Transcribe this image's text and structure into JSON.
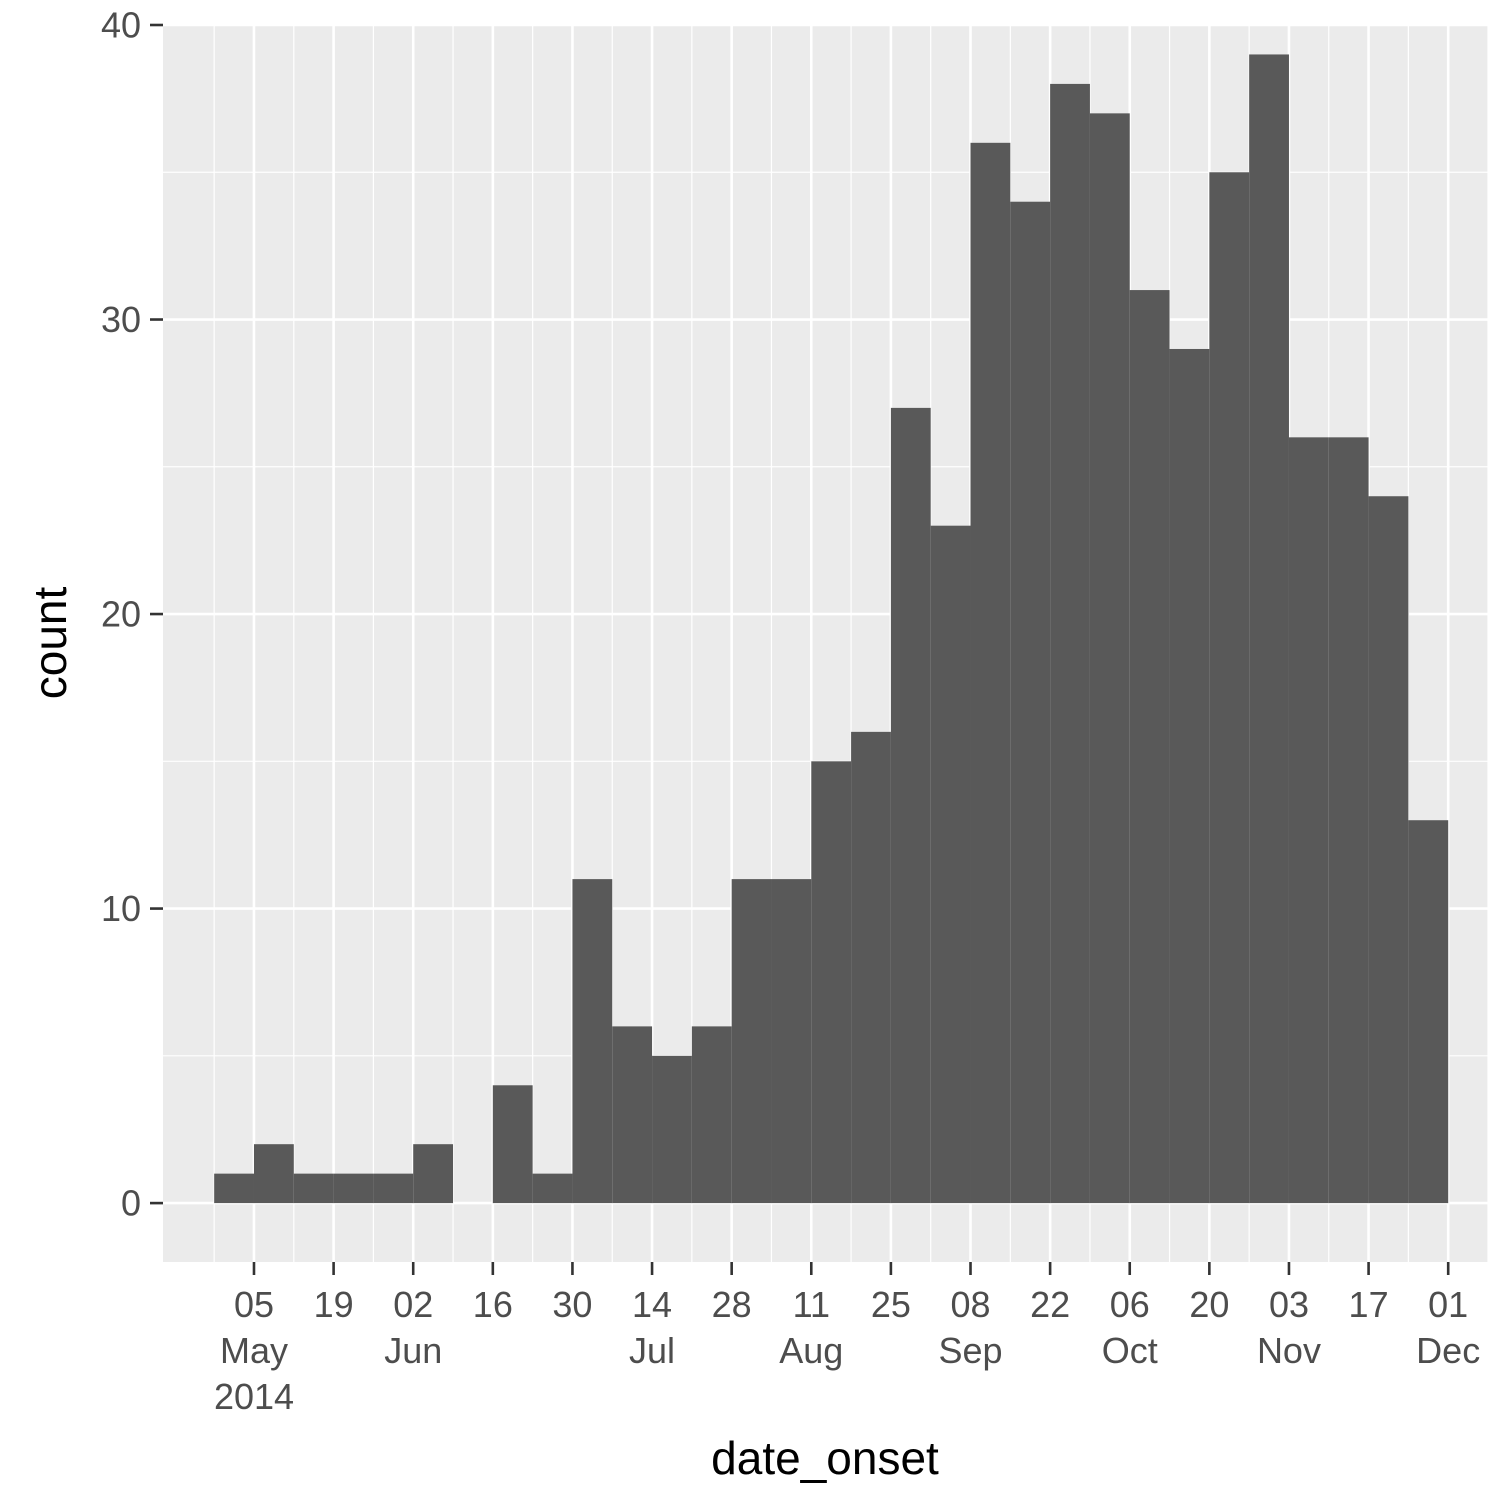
{
  "chart_data": {
    "type": "bar",
    "xlabel": "date_onset",
    "ylabel": "count",
    "ylim": [
      -2,
      40
    ],
    "xlim": [
      "2014-04-19",
      "2014-12-08"
    ],
    "grid": true,
    "bins": [
      {
        "start": "2014-04-28",
        "end": "2014-05-05",
        "count": 1
      },
      {
        "start": "2014-05-05",
        "end": "2014-05-12",
        "count": 2
      },
      {
        "start": "2014-05-12",
        "end": "2014-05-19",
        "count": 1
      },
      {
        "start": "2014-05-19",
        "end": "2014-05-26",
        "count": 1
      },
      {
        "start": "2014-05-26",
        "end": "2014-06-02",
        "count": 1
      },
      {
        "start": "2014-06-02",
        "end": "2014-06-09",
        "count": 2
      },
      {
        "start": "2014-06-09",
        "end": "2014-06-16",
        "count": 0
      },
      {
        "start": "2014-06-16",
        "end": "2014-06-23",
        "count": 4
      },
      {
        "start": "2014-06-23",
        "end": "2014-06-30",
        "count": 1
      },
      {
        "start": "2014-06-30",
        "end": "2014-07-07",
        "count": 11
      },
      {
        "start": "2014-07-07",
        "end": "2014-07-14",
        "count": 6
      },
      {
        "start": "2014-07-14",
        "end": "2014-07-21",
        "count": 5
      },
      {
        "start": "2014-07-21",
        "end": "2014-07-28",
        "count": 6
      },
      {
        "start": "2014-07-28",
        "end": "2014-08-04",
        "count": 11
      },
      {
        "start": "2014-08-04",
        "end": "2014-08-11",
        "count": 11
      },
      {
        "start": "2014-08-11",
        "end": "2014-08-18",
        "count": 15
      },
      {
        "start": "2014-08-18",
        "end": "2014-08-25",
        "count": 16
      },
      {
        "start": "2014-08-25",
        "end": "2014-09-01",
        "count": 27
      },
      {
        "start": "2014-09-01",
        "end": "2014-09-08",
        "count": 23
      },
      {
        "start": "2014-09-08",
        "end": "2014-09-15",
        "count": 36
      },
      {
        "start": "2014-09-15",
        "end": "2014-09-22",
        "count": 34
      },
      {
        "start": "2014-09-22",
        "end": "2014-09-29",
        "count": 38
      },
      {
        "start": "2014-09-29",
        "end": "2014-10-06",
        "count": 37
      },
      {
        "start": "2014-10-06",
        "end": "2014-10-13",
        "count": 31
      },
      {
        "start": "2014-10-13",
        "end": "2014-10-20",
        "count": 29
      },
      {
        "start": "2014-10-20",
        "end": "2014-10-27",
        "count": 35
      },
      {
        "start": "2014-10-27",
        "end": "2014-11-03",
        "count": 39
      },
      {
        "start": "2014-11-03",
        "end": "2014-11-10",
        "count": 26
      },
      {
        "start": "2014-11-10",
        "end": "2014-11-17",
        "count": 26
      },
      {
        "start": "2014-11-17",
        "end": "2014-11-24",
        "count": 24
      },
      {
        "start": "2014-11-24",
        "end": "2014-12-01",
        "count": 13
      }
    ],
    "yticks": [
      {
        "value": 0,
        "label": "0"
      },
      {
        "value": 10,
        "label": "10"
      },
      {
        "value": 20,
        "label": "20"
      },
      {
        "value": 30,
        "label": "30"
      },
      {
        "value": 40,
        "label": "40"
      }
    ],
    "xticks": [
      {
        "date": "2014-05-05",
        "lines": [
          "05",
          "May",
          "2014"
        ]
      },
      {
        "date": "2014-05-19",
        "lines": [
          "19"
        ]
      },
      {
        "date": "2014-06-02",
        "lines": [
          "02",
          "Jun"
        ]
      },
      {
        "date": "2014-06-16",
        "lines": [
          "16"
        ]
      },
      {
        "date": "2014-06-30",
        "lines": [
          "30"
        ]
      },
      {
        "date": "2014-07-14",
        "lines": [
          "14",
          "Jul"
        ]
      },
      {
        "date": "2014-07-28",
        "lines": [
          "28"
        ]
      },
      {
        "date": "2014-08-11",
        "lines": [
          "11",
          "Aug"
        ]
      },
      {
        "date": "2014-08-25",
        "lines": [
          "25"
        ]
      },
      {
        "date": "2014-09-08",
        "lines": [
          "08",
          "Sep"
        ]
      },
      {
        "date": "2014-09-22",
        "lines": [
          "22"
        ]
      },
      {
        "date": "2014-10-06",
        "lines": [
          "06",
          "Oct"
        ]
      },
      {
        "date": "2014-10-20",
        "lines": [
          "20"
        ]
      },
      {
        "date": "2014-11-03",
        "lines": [
          "03",
          "Nov"
        ]
      },
      {
        "date": "2014-11-17",
        "lines": [
          "17"
        ]
      },
      {
        "date": "2014-12-01",
        "lines": [
          "01",
          "Dec"
        ]
      }
    ],
    "colors": {
      "panel_background": "#ebebeb",
      "grid": "#ffffff",
      "bar_fill": "#595959",
      "tick": "#333333"
    }
  }
}
